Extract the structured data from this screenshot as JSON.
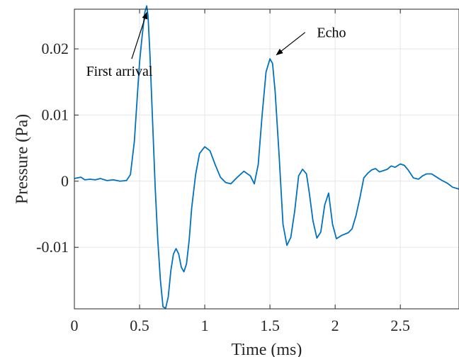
{
  "chart_data": {
    "type": "line",
    "title": "",
    "xlabel": "Time (ms)",
    "ylabel": "Pressure (Pa)",
    "xlim": [
      0,
      2.95
    ],
    "ylim": [
      -0.0193,
      0.026
    ],
    "grid": true,
    "line_color": "#0072BD",
    "xticks": [
      {
        "value": 0,
        "label": "0"
      },
      {
        "value": 0.5,
        "label": "0.5"
      },
      {
        "value": 1,
        "label": "1"
      },
      {
        "value": 1.5,
        "label": "1.5"
      },
      {
        "value": 2,
        "label": "2"
      },
      {
        "value": 2.5,
        "label": "2.5"
      }
    ],
    "yticks": [
      {
        "value": -0.01,
        "label": "-0.01"
      },
      {
        "value": 0,
        "label": "0"
      },
      {
        "value": 0.01,
        "label": "0.01"
      },
      {
        "value": 0.02,
        "label": "0.02"
      }
    ],
    "annotations": [
      {
        "text": "First arrival",
        "text_x": 0.09,
        "text_y": 0.0167,
        "arrow_from": [
          0.44,
          0.0185
        ],
        "arrow_to": [
          0.555,
          0.0255
        ]
      },
      {
        "text": "Echo",
        "text_x": 1.86,
        "text_y": 0.0225,
        "arrow_from": [
          1.77,
          0.0225
        ],
        "arrow_to": [
          1.55,
          0.0191
        ]
      }
    ],
    "series": [
      {
        "x": [
          0,
          0.05,
          0.08,
          0.12,
          0.16,
          0.2,
          0.25,
          0.3,
          0.35,
          0.4,
          0.43,
          0.46,
          0.48,
          0.5,
          0.52,
          0.54,
          0.555,
          0.565,
          0.58,
          0.6,
          0.62,
          0.64,
          0.66,
          0.68,
          0.7,
          0.72,
          0.74,
          0.76,
          0.78,
          0.8,
          0.82,
          0.84,
          0.86,
          0.88,
          0.9,
          0.93,
          0.96,
          1.0,
          1.04,
          1.08,
          1.12,
          1.16,
          1.2,
          1.25,
          1.3,
          1.35,
          1.38,
          1.41,
          1.44,
          1.47,
          1.5,
          1.52,
          1.54,
          1.57,
          1.6,
          1.63,
          1.66,
          1.69,
          1.72,
          1.75,
          1.78,
          1.8,
          1.83,
          1.86,
          1.89,
          1.92,
          1.95,
          1.98,
          2.01,
          2.05,
          2.1,
          2.13,
          2.16,
          2.19,
          2.22,
          2.25,
          2.28,
          2.31,
          2.34,
          2.37,
          2.4,
          2.43,
          2.46,
          2.5,
          2.53,
          2.56,
          2.6,
          2.64,
          2.67,
          2.7,
          2.74,
          2.78,
          2.82,
          2.86,
          2.9,
          2.95
        ],
        "y": [
          0.0004,
          0.0006,
          0.0002,
          0.0003,
          0.0002,
          0.0004,
          0.0001,
          0.0002,
          0.0,
          0.0001,
          0.001,
          0.006,
          0.012,
          0.018,
          0.022,
          0.0255,
          0.0265,
          0.025,
          0.019,
          0.009,
          -0.001,
          -0.009,
          -0.015,
          -0.019,
          -0.0192,
          -0.0175,
          -0.0135,
          -0.011,
          -0.0102,
          -0.011,
          -0.013,
          -0.0137,
          -0.0125,
          -0.009,
          -0.004,
          0.001,
          0.0042,
          0.0052,
          0.0046,
          0.0025,
          0.0006,
          -0.0002,
          -0.0004,
          0.0006,
          0.0015,
          0.0008,
          -0.0004,
          0.0025,
          0.01,
          0.0165,
          0.0185,
          0.0178,
          0.0135,
          0.004,
          -0.0065,
          -0.0097,
          -0.0085,
          -0.0045,
          0.0008,
          0.0018,
          0.0011,
          -0.0015,
          -0.006,
          -0.0086,
          -0.0077,
          -0.0036,
          -0.0018,
          -0.0065,
          -0.0087,
          -0.0082,
          -0.0078,
          -0.0072,
          -0.0052,
          -0.0025,
          0.0005,
          0.0012,
          0.0017,
          0.0019,
          0.0014,
          0.0016,
          0.0018,
          0.0023,
          0.0021,
          0.0026,
          0.0024,
          0.0017,
          0.0005,
          0.0003,
          0.0008,
          0.0011,
          0.0011,
          0.0006,
          0.0001,
          -0.0003,
          -0.0009,
          -0.0012
        ]
      }
    ]
  }
}
